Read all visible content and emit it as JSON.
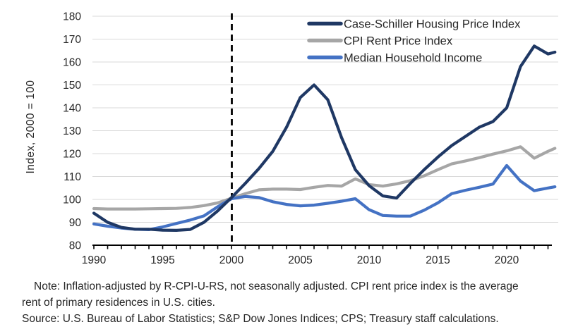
{
  "chart_data": {
    "type": "line",
    "title": "",
    "xlabel": "",
    "ylabel": "Index, 2000 = 100",
    "xlim": [
      1990,
      2023.5
    ],
    "ylim": [
      80,
      180
    ],
    "grid": true,
    "legend_position": "top-right",
    "reference_line": {
      "axis": "x",
      "value": 2000,
      "style": "dashed",
      "color": "#000000"
    },
    "x_tick_labels": [
      1990,
      1995,
      2000,
      2005,
      2010,
      2015,
      2020
    ],
    "y_ticks": [
      80,
      90,
      100,
      110,
      120,
      130,
      140,
      150,
      160,
      170,
      180
    ],
    "x": [
      1990,
      1991,
      1992,
      1993,
      1994,
      1995,
      1996,
      1997,
      1998,
      1999,
      2000,
      2001,
      2002,
      2003,
      2004,
      2005,
      2006,
      2007,
      2008,
      2009,
      2010,
      2011,
      2012,
      2013,
      2014,
      2015,
      2016,
      2017,
      2018,
      2019,
      2020,
      2021,
      2022,
      2023,
      2023.5
    ],
    "series": [
      {
        "name": "Case-Schiller Housing Price Index",
        "color": "#1F3864",
        "values": [
          94,
          90,
          87.8,
          87,
          87,
          86.6,
          86.5,
          86.9,
          90,
          95,
          100.8,
          107,
          113.5,
          121,
          131.5,
          144.5,
          150,
          143.5,
          127,
          113,
          106,
          101.5,
          100.6,
          107,
          113,
          118.5,
          123.5,
          127.5,
          131.5,
          134,
          140,
          158,
          167,
          163.5,
          164.3
        ]
      },
      {
        "name": "CPI Rent Price Index",
        "color": "#A6A6A6",
        "values": [
          96,
          95.8,
          95.8,
          95.8,
          95.9,
          96,
          96.1,
          96.5,
          97.3,
          98.5,
          100.5,
          102.5,
          104.2,
          104.5,
          104.5,
          104.3,
          105.3,
          106.1,
          105.8,
          109,
          106.5,
          105.8,
          106.8,
          108.2,
          110.3,
          113,
          115.5,
          116.8,
          118.2,
          119.8,
          121.2,
          123,
          118,
          121,
          122.3
        ]
      },
      {
        "name": "Median Household Income",
        "color": "#4472C4",
        "values": [
          89.3,
          88.3,
          87.5,
          87,
          86.8,
          88,
          89.5,
          91,
          92.8,
          96.8,
          100.3,
          101.3,
          100.8,
          99,
          97.8,
          97.2,
          97.5,
          98.3,
          99.2,
          100.3,
          95.5,
          93,
          92.7,
          92.7,
          95.3,
          98.5,
          102.5,
          104,
          105.3,
          106.7,
          114.8,
          108,
          103.8,
          105,
          105.5
        ]
      }
    ]
  },
  "axis": {
    "y_title": "Index, 2000 = 100"
  },
  "colors": {
    "grid": "#D9D9D9",
    "axis_line": "#000000",
    "text": "#262626"
  },
  "notes": {
    "line1": "Note: Inflation-adjusted by R-CPI-U-RS, not seasonally adjusted. CPI rent price index is the average",
    "line2": "rent of primary residences in U.S. cities.",
    "source": "Source: U.S. Bureau of Labor Statistics; S&P Dow Jones Indices; CPS; Treasury staff calculations."
  }
}
